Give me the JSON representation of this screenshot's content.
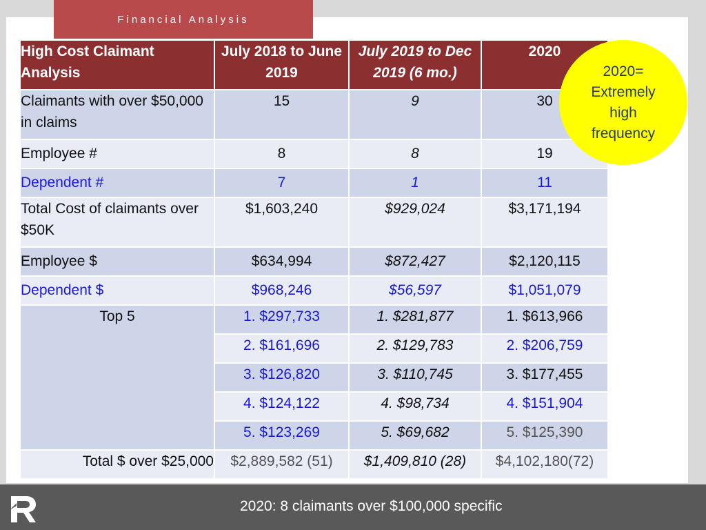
{
  "header": {
    "title": "Financial Analysis"
  },
  "table": {
    "headers": [
      "High Cost Claimant Analysis",
      "July 2018 to June 2019",
      "July 2019 to Dec 2019 (6 mo.)",
      "2020"
    ],
    "rows": [
      {
        "label": "Claimants with over $50,000 in claims",
        "values": [
          "15",
          "9",
          "30"
        ]
      },
      {
        "label": "Employee #",
        "values": [
          "8",
          "8",
          "19"
        ]
      },
      {
        "label": "Dependent #",
        "values": [
          "7",
          "1",
          "11"
        ]
      },
      {
        "label": "Total Cost of claimants over $50K",
        "values": [
          "$1,603,240",
          "$929,024",
          "$3,171,194"
        ]
      },
      {
        "label": "Employee $",
        "values": [
          "$634,994",
          "$872,427",
          "$2,120,115"
        ]
      },
      {
        "label": "Dependent $",
        "values": [
          "$968,246",
          "$56,597",
          "$1,051,079"
        ]
      }
    ],
    "top5": {
      "label": "Top 5",
      "rows": [
        [
          "1. $297,733",
          "1. $281,877",
          "1. $613,966"
        ],
        [
          "2. $161,696",
          "2. $129,783",
          "2. $206,759"
        ],
        [
          "3. $126,820",
          "3. $110,745",
          "3. $177,455"
        ],
        [
          "4. $124,122",
          "4. $98,734",
          "4. $151,904"
        ],
        [
          "5. $123,269",
          "5. $69,682",
          "5. $125,390"
        ]
      ]
    },
    "total": {
      "label": "Total $ over $25,000",
      "values": [
        "$2,889,582 (51)",
        "$1,409,810 (28)",
        "$4,102,180(72)"
      ]
    }
  },
  "callout": {
    "lines": [
      "2020=",
      "Extremely",
      "high",
      "frequency"
    ]
  },
  "footer": {
    "text": "2020: 8 claimants over $100,000 specific"
  },
  "colors": {
    "header_tab": "#b94a4c",
    "table_header": "#8c2f31",
    "row_dark": "#cfd5e8",
    "row_light": "#e9ebf5",
    "accent_blue": "#1a1ad6",
    "callout": "#ffff00",
    "footer": "#595959"
  }
}
